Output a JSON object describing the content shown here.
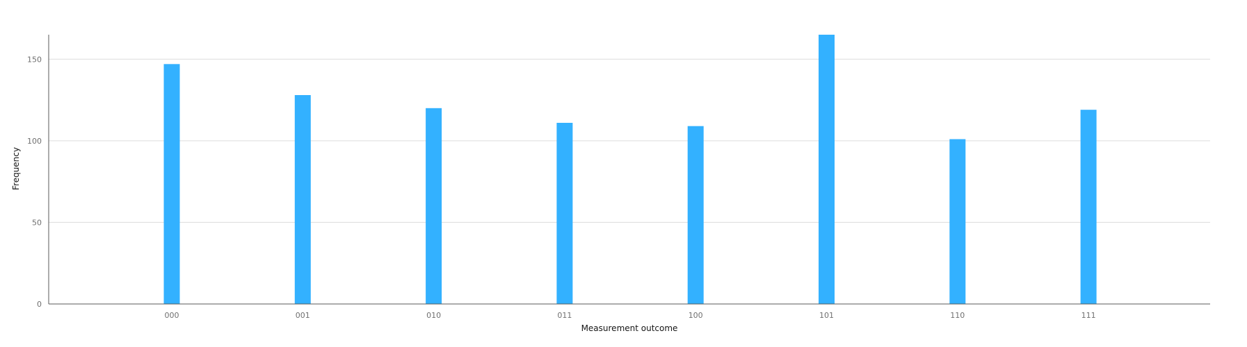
{
  "chart_data": {
    "type": "bar",
    "title": "",
    "xlabel": "Measurement outcome",
    "ylabel": "Frequency",
    "categories": [
      "000",
      "001",
      "010",
      "011",
      "100",
      "101",
      "110",
      "111"
    ],
    "values": [
      147,
      128,
      120,
      111,
      109,
      165,
      101,
      119
    ],
    "ylim": [
      0,
      165
    ],
    "yticks": [
      0,
      50,
      100,
      150
    ],
    "grid": true,
    "legend": "none",
    "bar_color": "#33b1ff"
  }
}
